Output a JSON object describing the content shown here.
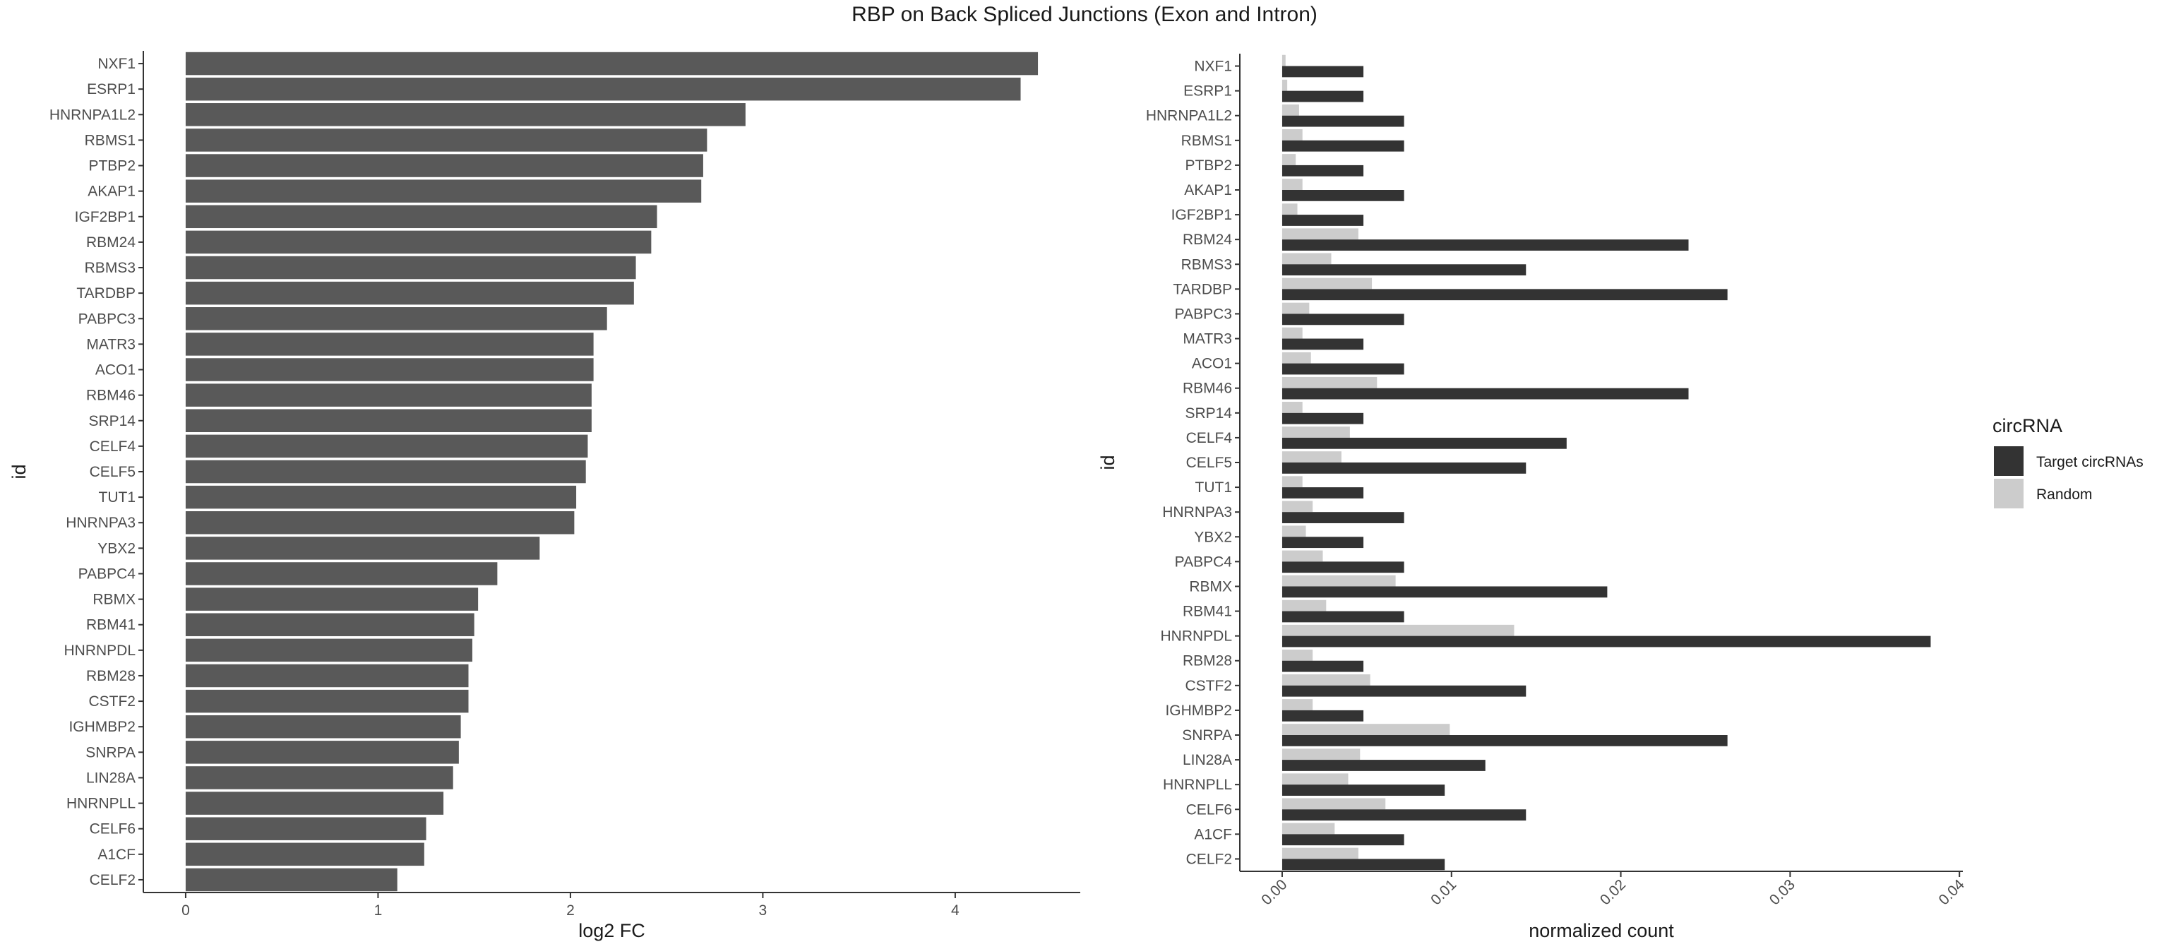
{
  "title": "RBP on Back Spliced Junctions (Exon and Intron)",
  "colors": {
    "bar_left": "#595959",
    "target": "#333333",
    "random": "#cccccc",
    "axis": "#333333"
  },
  "chart_data": [
    {
      "type": "bar",
      "orientation": "horizontal",
      "categories": [
        "NXF1",
        "ESRP1",
        "HNRNPA1L2",
        "RBMS1",
        "PTBP2",
        "AKAP1",
        "IGF2BP1",
        "RBM24",
        "RBMS3",
        "TARDBP",
        "PABPC3",
        "MATR3",
        "ACO1",
        "RBM46",
        "SRP14",
        "CELF4",
        "CELF5",
        "TUT1",
        "HNRNPA3",
        "YBX2",
        "PABPC4",
        "RBMX",
        "RBM41",
        "HNRNPDL",
        "RBM28",
        "CSTF2",
        "IGHMBP2",
        "SNRPA",
        "LIN28A",
        "HNRNPLL",
        "CELF6",
        "A1CF",
        "CELF2"
      ],
      "values": [
        4.43,
        4.34,
        2.91,
        2.71,
        2.69,
        2.68,
        2.45,
        2.42,
        2.34,
        2.33,
        2.19,
        2.12,
        2.12,
        2.11,
        2.11,
        2.09,
        2.08,
        2.03,
        2.02,
        1.84,
        1.62,
        1.52,
        1.5,
        1.49,
        1.47,
        1.47,
        1.43,
        1.42,
        1.39,
        1.34,
        1.25,
        1.24,
        1.1
      ],
      "xlabel": "log2 FC",
      "ylabel": "id",
      "xlim": [
        -0.22,
        4.65
      ],
      "xticks": [
        "0",
        "1",
        "2",
        "3",
        "4"
      ],
      "grid": false
    },
    {
      "type": "bar",
      "orientation": "horizontal",
      "grouped": true,
      "categories": [
        "NXF1",
        "ESRP1",
        "HNRNPA1L2",
        "RBMS1",
        "PTBP2",
        "AKAP1",
        "IGF2BP1",
        "RBM24",
        "RBMS3",
        "TARDBP",
        "PABPC3",
        "MATR3",
        "ACO1",
        "RBM46",
        "SRP14",
        "CELF4",
        "CELF5",
        "TUT1",
        "HNRNPA3",
        "YBX2",
        "PABPC4",
        "RBMX",
        "RBM41",
        "HNRNPDL",
        "RBM28",
        "CSTF2",
        "IGHMBP2",
        "SNRPA",
        "LIN28A",
        "HNRNPLL",
        "CELF6",
        "A1CF",
        "CELF2"
      ],
      "series": [
        {
          "name": "Target circRNAs",
          "values": [
            0.0048,
            0.0048,
            0.0072,
            0.0072,
            0.0048,
            0.0072,
            0.0048,
            0.024,
            0.0144,
            0.0263,
            0.0072,
            0.0048,
            0.0072,
            0.024,
            0.0048,
            0.0168,
            0.0144,
            0.0048,
            0.0072,
            0.0048,
            0.0072,
            0.0192,
            0.0072,
            0.0383,
            0.0048,
            0.0144,
            0.0048,
            0.0263,
            0.012,
            0.0096,
            0.0144,
            0.0072,
            0.0096
          ]
        },
        {
          "name": "Random",
          "values": [
            0.0002,
            0.0003,
            0.001,
            0.0012,
            0.0008,
            0.0012,
            0.0009,
            0.0045,
            0.0029,
            0.0053,
            0.0016,
            0.0012,
            0.0017,
            0.0056,
            0.0012,
            0.004,
            0.0035,
            0.0012,
            0.0018,
            0.0014,
            0.0024,
            0.0067,
            0.0026,
            0.0137,
            0.0018,
            0.0052,
            0.0018,
            0.0099,
            0.0046,
            0.0039,
            0.0061,
            0.0031,
            0.0045
          ]
        }
      ],
      "xlabel": "normalized count",
      "ylabel": "id",
      "xlim": [
        -0.0025,
        0.0402
      ],
      "xticks": [
        "0.00",
        "0.01",
        "0.02",
        "0.03",
        "0.04"
      ],
      "legend_title": "circRNA",
      "legend_position": "right",
      "grid": false
    }
  ]
}
